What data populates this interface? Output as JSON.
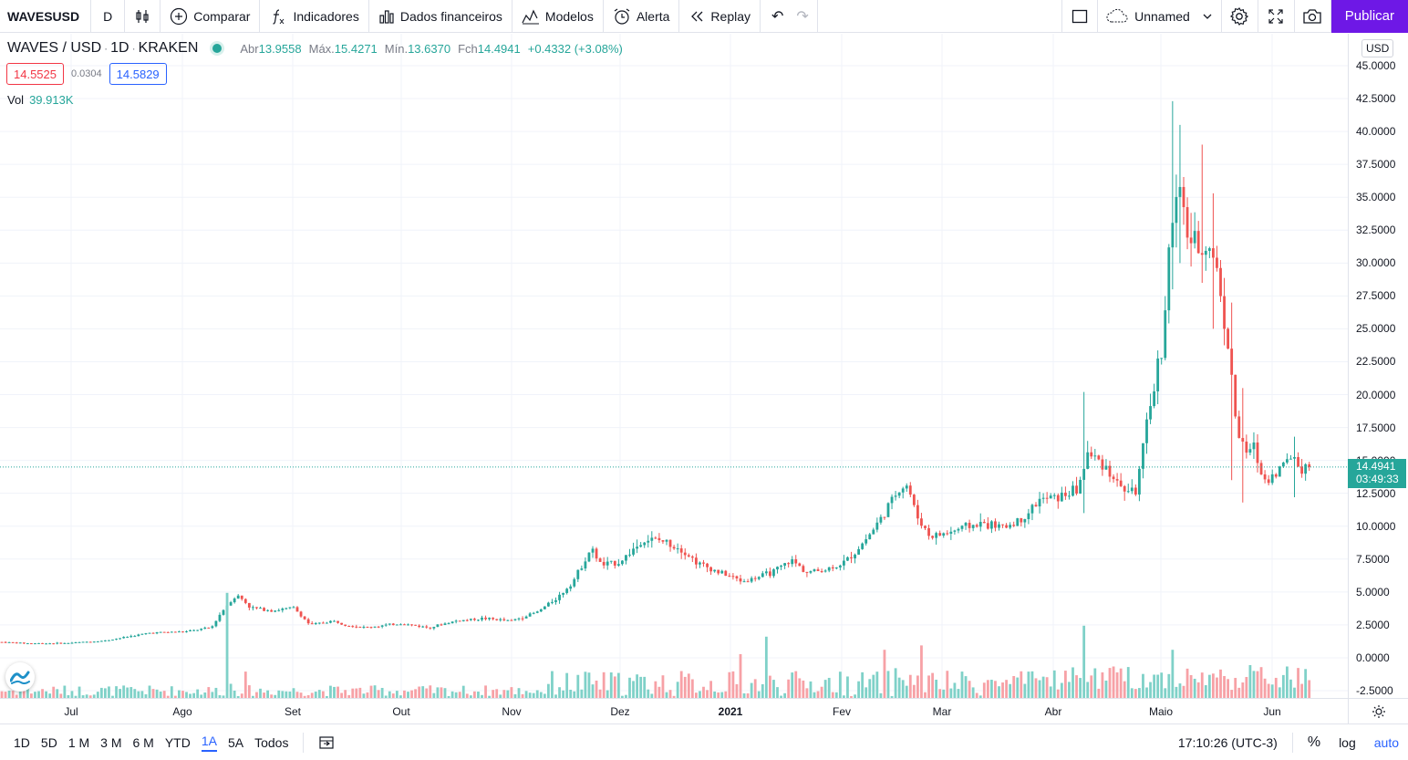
{
  "toolbar": {
    "symbol": "WAVESUSD",
    "interval": "D",
    "compare": "Comparar",
    "indicators": "Indicadores",
    "financials": "Dados financeiros",
    "templates": "Modelos",
    "alert": "Alerta",
    "replay": "Replay",
    "layout_name": "Unnamed",
    "publish": "Publicar"
  },
  "legend": {
    "pair": "WAVES / USD",
    "sep1": "·",
    "timeframe": "1D",
    "sep2": "·",
    "exchange": "KRAKEN",
    "open_label": "Abr",
    "open": "13.9558",
    "high_label": "Máx.",
    "high": "15.4271",
    "low_label": "Mín.",
    "low": "13.6370",
    "close_label": "Fch",
    "close": "14.4941",
    "change": "+0.4332 (+3.08%)"
  },
  "quote": {
    "sell": "14.5525",
    "spread": "0.0304",
    "buy": "14.5829"
  },
  "volume": {
    "label": "Vol",
    "value": "39.913K"
  },
  "price_axis": {
    "currency": "USD",
    "labels": [
      "45.0000",
      "42.5000",
      "40.0000",
      "37.5000",
      "35.0000",
      "32.5000",
      "30.0000",
      "27.5000",
      "25.0000",
      "22.5000",
      "20.0000",
      "17.5000",
      "15.0000",
      "12.5000",
      "10.0000",
      "7.5000",
      "5.0000",
      "2.5000",
      "0.0000",
      "-2.5000"
    ],
    "current_price": "14.4941",
    "countdown": "03:49:33"
  },
  "time_axis": {
    "labels": [
      "Jul",
      "Ago",
      "Set",
      "Out",
      "Nov",
      "Dez",
      "2021",
      "Fev",
      "Mar",
      "Abr",
      "Maio",
      "Jun"
    ]
  },
  "bottom": {
    "ranges": [
      "1D",
      "5D",
      "1 M",
      "3 M",
      "6 M",
      "YTD",
      "1A",
      "5A",
      "Todos"
    ],
    "active_range": "1A",
    "clock": "17:10:26 (UTC-3)",
    "percent": "%",
    "log": "log",
    "auto": "auto"
  },
  "colors": {
    "up": "#26a69a",
    "down": "#ef5350",
    "vol_up": "#7fd1c8",
    "vol_down": "#f7a1a6",
    "accent": "#2962ff",
    "publish": "#6e18e6"
  },
  "chart_data": {
    "type": "candlestick",
    "title": "WAVES / USD · 1D · KRAKEN",
    "y_range": [
      -2.5,
      45
    ],
    "x_labels": [
      "Jul",
      "Ago",
      "Set",
      "Out",
      "Nov",
      "Dez",
      "2021",
      "Fev",
      "Mar",
      "Abr",
      "Maio",
      "Jun"
    ],
    "anchors": [
      [
        0,
        1.2
      ],
      [
        30,
        1.1
      ],
      [
        70,
        1.1
      ],
      [
        115,
        1.3
      ],
      [
        140,
        1.6
      ],
      [
        165,
        1.9
      ],
      [
        205,
        2.0
      ],
      [
        232,
        2.3
      ],
      [
        243,
        3.5
      ],
      [
        255,
        4.5
      ],
      [
        262,
        4.7
      ],
      [
        275,
        3.8
      ],
      [
        300,
        3.6
      ],
      [
        322,
        3.8
      ],
      [
        340,
        2.5
      ],
      [
        365,
        2.8
      ],
      [
        380,
        2.5
      ],
      [
        400,
        2.3
      ],
      [
        440,
        2.6
      ],
      [
        470,
        2.3
      ],
      [
        500,
        2.8
      ],
      [
        530,
        3.0
      ],
      [
        560,
        2.8
      ],
      [
        590,
        3.5
      ],
      [
        615,
        4.8
      ],
      [
        630,
        6.0
      ],
      [
        648,
        8.3
      ],
      [
        660,
        7.0
      ],
      [
        680,
        7.3
      ],
      [
        695,
        8.3
      ],
      [
        708,
        9.0
      ],
      [
        725,
        8.9
      ],
      [
        745,
        8.4
      ],
      [
        765,
        7.2
      ],
      [
        785,
        6.6
      ],
      [
        800,
        6.2
      ],
      [
        815,
        5.8
      ],
      [
        835,
        6.2
      ],
      [
        850,
        6.6
      ],
      [
        868,
        7.4
      ],
      [
        885,
        6.5
      ],
      [
        905,
        6.7
      ],
      [
        925,
        7.2
      ],
      [
        940,
        8.2
      ],
      [
        955,
        9.5
      ],
      [
        970,
        11.0
      ],
      [
        985,
        12.8
      ],
      [
        995,
        13.2
      ],
      [
        1005,
        10.8
      ],
      [
        1020,
        9.2
      ],
      [
        1040,
        9.5
      ],
      [
        1060,
        10.0
      ],
      [
        1080,
        10.2
      ],
      [
        1100,
        9.9
      ],
      [
        1120,
        10.5
      ],
      [
        1140,
        12.0
      ],
      [
        1160,
        12.2
      ],
      [
        1182,
        12.8
      ],
      [
        1192,
        15.5
      ],
      [
        1210,
        14.8
      ],
      [
        1228,
        13.0
      ],
      [
        1245,
        12.5
      ],
      [
        1255,
        16.5
      ],
      [
        1265,
        20.5
      ],
      [
        1275,
        24.0
      ],
      [
        1283,
        32.0
      ],
      [
        1292,
        35.5
      ],
      [
        1302,
        32.5
      ],
      [
        1312,
        31.0
      ],
      [
        1322,
        31.5
      ],
      [
        1332,
        30.5
      ],
      [
        1340,
        27.0
      ],
      [
        1348,
        23.0
      ],
      [
        1356,
        17.5
      ],
      [
        1365,
        15.5
      ],
      [
        1375,
        16.0
      ],
      [
        1385,
        13.5
      ],
      [
        1395,
        13.8
      ],
      [
        1405,
        14.5
      ],
      [
        1418,
        15.5
      ],
      [
        1425,
        14.5
      ],
      [
        1435,
        14.3
      ]
    ],
    "spikes": [
      [
        1187,
        20.2,
        11.0
      ],
      [
        1285,
        42.3,
        28.0
      ],
      [
        1292,
        40.5,
        30.0
      ],
      [
        1318,
        39.0,
        28.5
      ],
      [
        1329,
        35.3,
        25.0
      ],
      [
        1347,
        27.0,
        13.5
      ],
      [
        1360,
        20.5,
        11.8
      ],
      [
        1418,
        16.8,
        12.2
      ]
    ],
    "volume_spikes": [
      [
        247,
        48
      ],
      [
        1187,
        33
      ],
      [
        1285,
        22
      ],
      [
        840,
        28
      ],
      [
        1010,
        24
      ],
      [
        1368,
        15
      ],
      [
        810,
        20
      ],
      [
        968,
        22
      ]
    ],
    "last_close": 14.4941
  }
}
